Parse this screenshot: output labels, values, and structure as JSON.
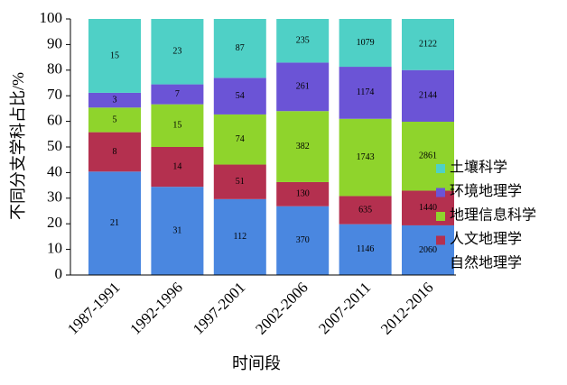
{
  "chart_data": {
    "type": "bar",
    "stack": "percent",
    "ylabel": "不同分支学科占比/%",
    "xlabel": "时间段",
    "categories": [
      "1987-1991",
      "1992-1996",
      "1997-2001",
      "2002-2006",
      "2007-2011",
      "2012-2016"
    ],
    "series": [
      {
        "name": "自然地理学",
        "color": "#4a87e0",
        "values": [
          21,
          31,
          112,
          370,
          1146,
          2060
        ]
      },
      {
        "name": "人文地理学",
        "color": "#b4304f",
        "values": [
          8,
          14,
          51,
          130,
          635,
          1440
        ]
      },
      {
        "name": "地理信息科学",
        "color": "#8fd42c",
        "values": [
          5,
          15,
          74,
          382,
          1743,
          2861
        ]
      },
      {
        "name": "环境地理学",
        "color": "#6b54d6",
        "values": [
          3,
          7,
          54,
          261,
          1174,
          2144
        ]
      },
      {
        "name": "土壤科学",
        "color": "#4fd0c6",
        "values": [
          15,
          23,
          87,
          235,
          1079,
          2122
        ]
      }
    ],
    "ylim": [
      0,
      100
    ],
    "yticks": [
      0,
      10,
      20,
      30,
      40,
      50,
      60,
      70,
      80,
      90,
      100
    ]
  }
}
